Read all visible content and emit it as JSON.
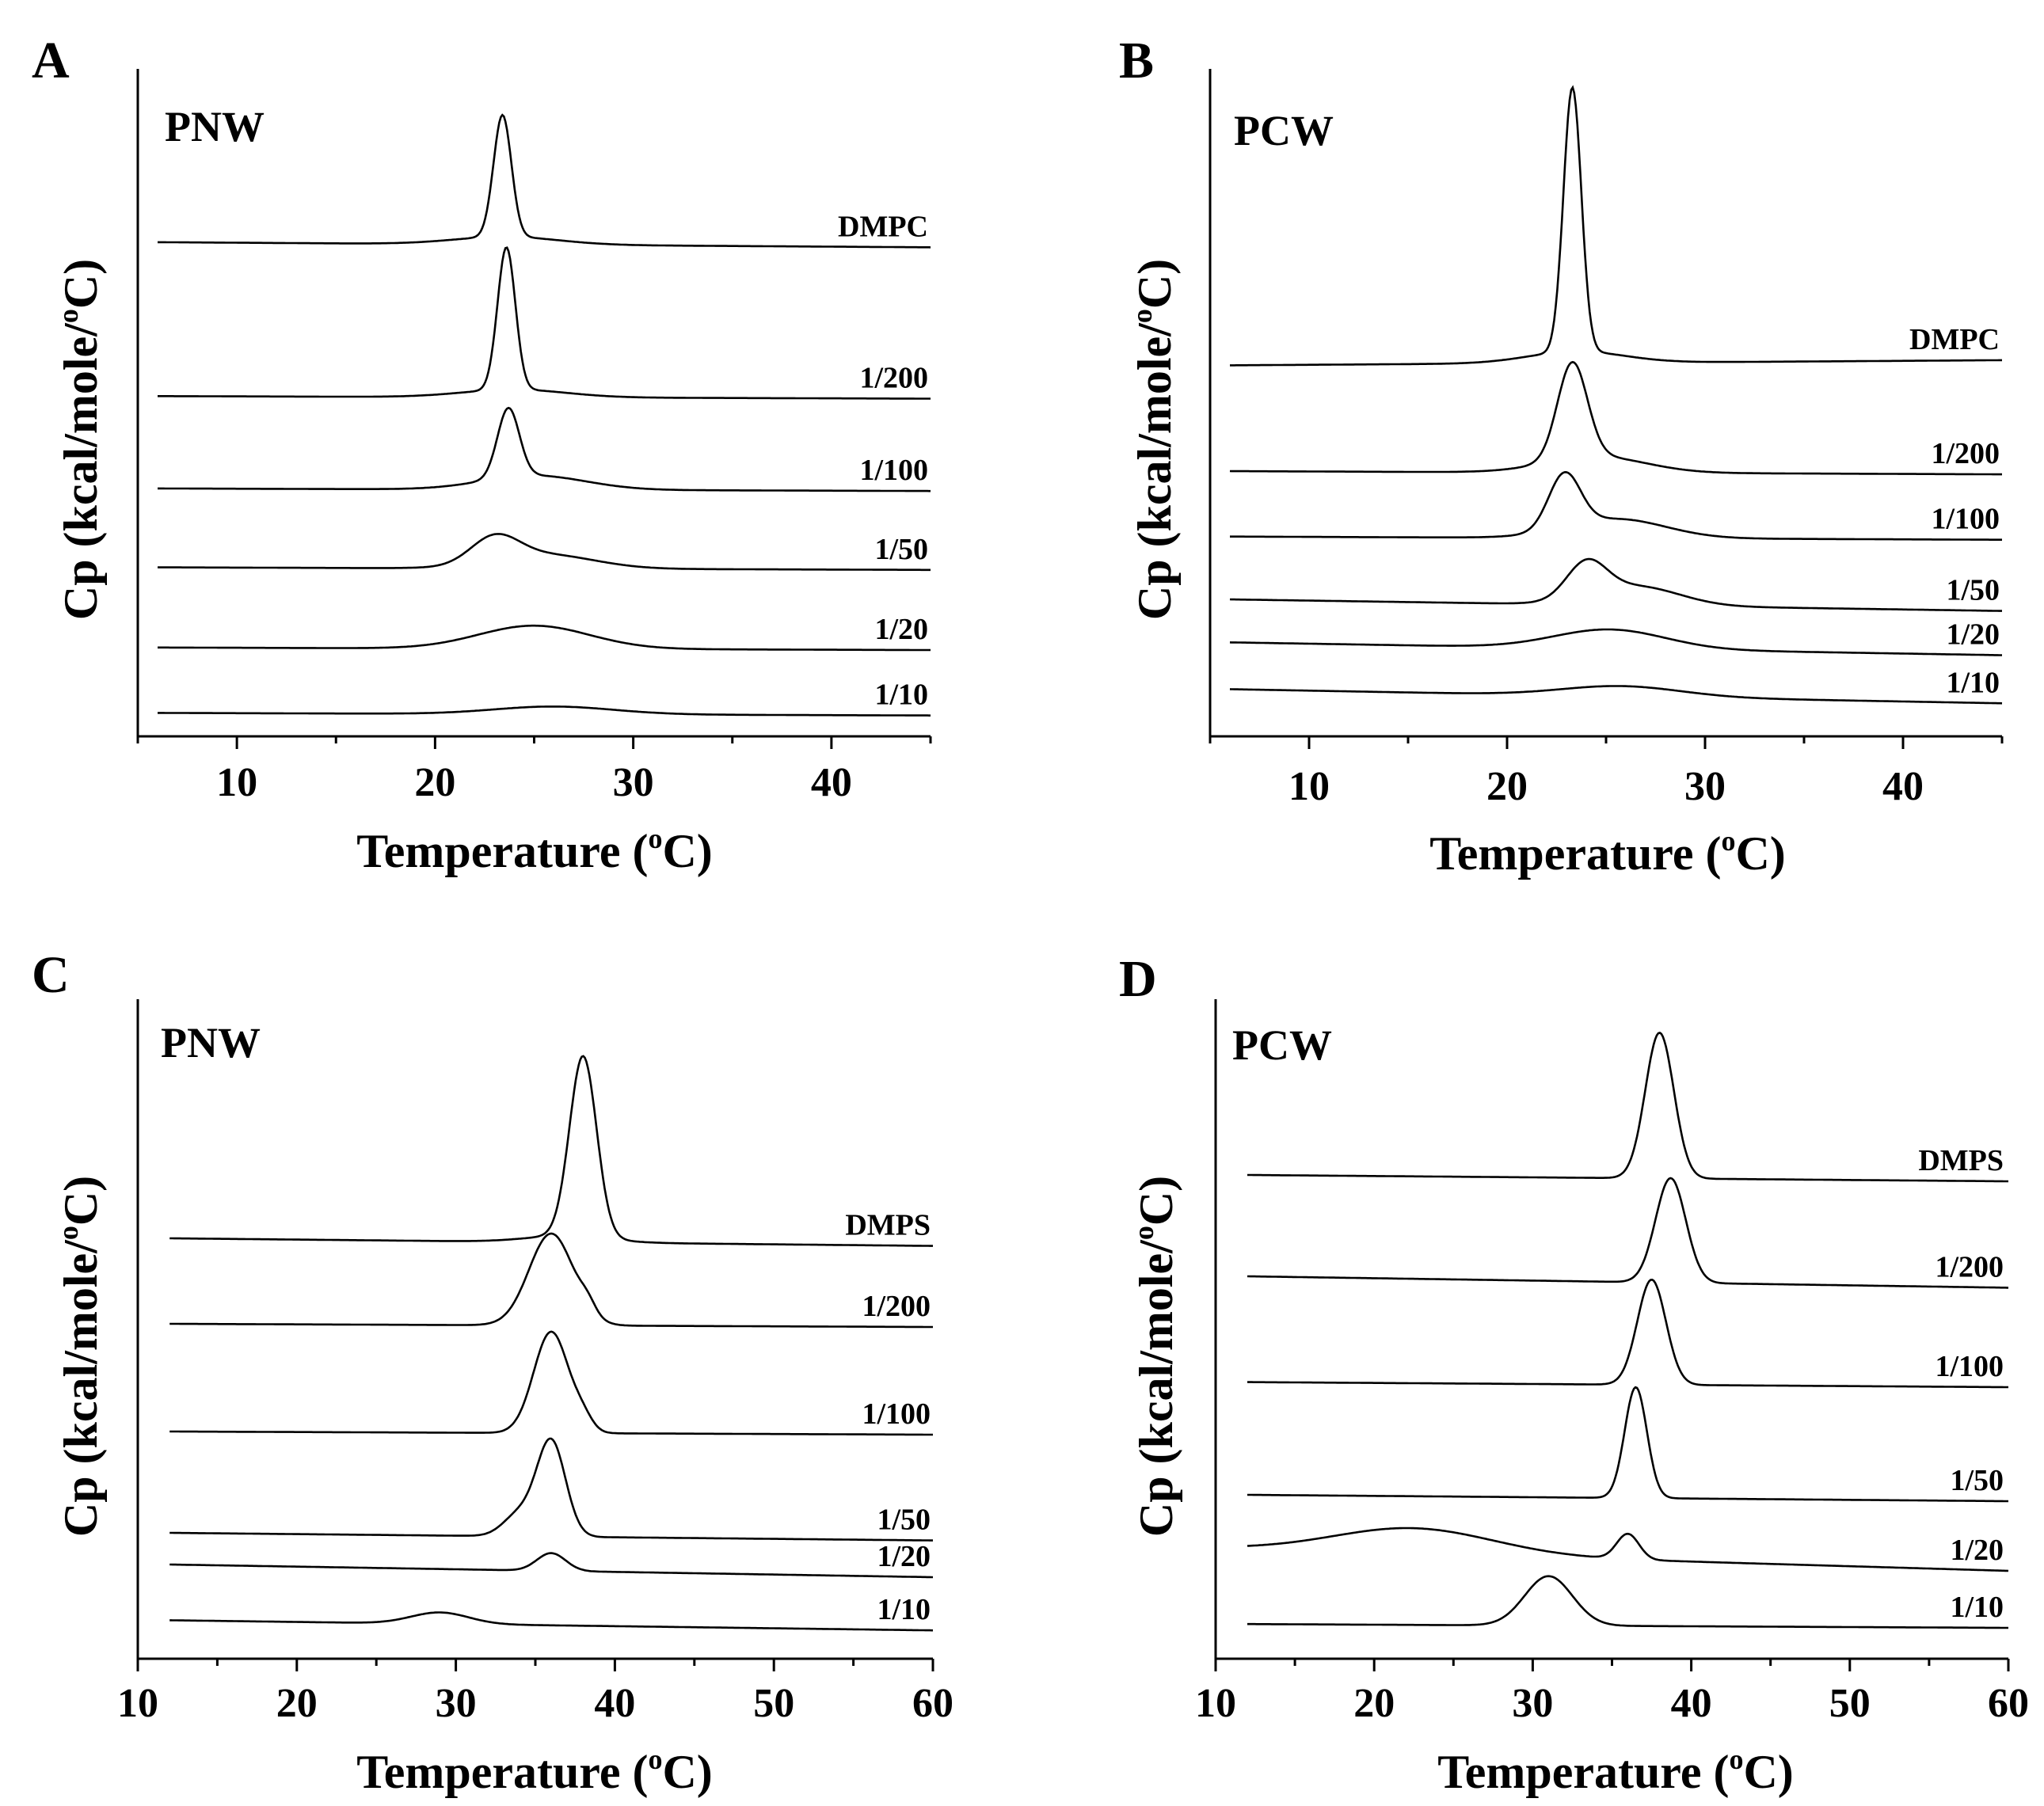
{
  "figure_title": "",
  "chart_data": [
    {
      "panel": "A",
      "type": "line",
      "sample": "PNW",
      "xlabel": "Temperature (oC)",
      "xlabel_main": "Temperature (",
      "xlabel_sup": "o",
      "xlabel_end": "C)",
      "ylabel": "Cp (kcal/mole/oC)",
      "ylabel_main": "Cp (kcal/mole/",
      "ylabel_sup": "o",
      "ylabel_end": "C)",
      "xlim": [
        5,
        45
      ],
      "xticks": [
        10,
        20,
        30,
        40
      ],
      "x_start": 6,
      "series": [
        {
          "name": "DMPC",
          "baseline": 0.752,
          "slope": -0.008,
          "components": [
            {
              "center": 23.4,
              "height": 0.19,
              "width": 0.45
            },
            {
              "center": 23.6,
              "height": 0.012,
              "width": 2.6
            }
          ]
        },
        {
          "name": "1/200",
          "baseline": 0.512,
          "slope": -0.004,
          "components": [
            {
              "center": 23.6,
              "height": 0.222,
              "width": 0.45
            },
            {
              "center": 24.0,
              "height": 0.012,
              "width": 2.6
            }
          ]
        },
        {
          "name": "1/100",
          "baseline": 0.368,
          "slope": -0.004,
          "components": [
            {
              "center": 23.7,
              "height": 0.108,
              "width": 0.55
            },
            {
              "center": 25.0,
              "height": 0.022,
              "width": 2.6
            }
          ]
        },
        {
          "name": "1/50",
          "baseline": 0.245,
          "slope": -0.004,
          "components": [
            {
              "center": 23.0,
              "height": 0.04,
              "width": 1.2
            },
            {
              "center": 25.5,
              "height": 0.022,
              "width": 2.5
            }
          ]
        },
        {
          "name": "1/20",
          "baseline": 0.12,
          "slope": -0.004,
          "components": [
            {
              "center": 25.0,
              "height": 0.036,
              "width": 2.8
            }
          ]
        },
        {
          "name": "1/10",
          "baseline": 0.018,
          "slope": -0.004,
          "components": [
            {
              "center": 26.0,
              "height": 0.012,
              "width": 3.0
            }
          ]
        }
      ]
    },
    {
      "panel": "B",
      "type": "line",
      "sample": "PCW",
      "xlabel": "Temperature (oC)",
      "xlabel_main": "Temperature (",
      "xlabel_sup": "o",
      "xlabel_end": "C)",
      "ylabel": "Cp (kcal/mole/oC)",
      "ylabel_main": "Cp (kcal/mole/",
      "ylabel_sup": "o",
      "ylabel_end": "C)",
      "xlim": [
        5,
        45
      ],
      "xticks": [
        10,
        20,
        30,
        40
      ],
      "x_start": 6,
      "series": [
        {
          "name": "DMPC",
          "baseline": 0.56,
          "slope": 0.008,
          "components": [
            {
              "center": 23.3,
              "height": 0.412,
              "width": 0.45
            },
            {
              "center": 23.5,
              "height": 0.018,
              "width": 2.4
            }
          ]
        },
        {
          "name": "1/200",
          "baseline": 0.395,
          "slope": -0.005,
          "components": [
            {
              "center": 23.3,
              "height": 0.15,
              "width": 0.75
            },
            {
              "center": 24.5,
              "height": 0.025,
              "width": 2.5
            }
          ]
        },
        {
          "name": "1/100",
          "baseline": 0.293,
          "slope": -0.005,
          "components": [
            {
              "center": 22.9,
              "height": 0.085,
              "width": 0.8
            },
            {
              "center": 25.5,
              "height": 0.03,
              "width": 2.5
            }
          ]
        },
        {
          "name": "1/50",
          "baseline": 0.195,
          "slope": -0.018,
          "components": [
            {
              "center": 24.0,
              "height": 0.055,
              "width": 1.0
            },
            {
              "center": 26.5,
              "height": 0.03,
              "width": 2.2
            }
          ]
        },
        {
          "name": "1/20",
          "baseline": 0.128,
          "slope": -0.02,
          "components": [
            {
              "center": 25.2,
              "height": 0.03,
              "width": 2.8
            }
          ]
        },
        {
          "name": "1/10",
          "baseline": 0.055,
          "slope": -0.022,
          "components": [
            {
              "center": 25.8,
              "height": 0.016,
              "width": 3.0
            }
          ]
        }
      ]
    },
    {
      "panel": "C",
      "type": "line",
      "sample": "PNW",
      "xlabel": "Temperature (oC)",
      "xlabel_main": "Temperature (",
      "xlabel_sup": "o",
      "xlabel_end": "C)",
      "ylabel": "Cp (kcal/mole/oC)",
      "ylabel_main": "Cp (kcal/mole/",
      "ylabel_sup": "o",
      "ylabel_end": "C)",
      "xlim": [
        10,
        60
      ],
      "xticks": [
        10,
        20,
        30,
        40,
        50,
        60
      ],
      "x_start": 12,
      "series": [
        {
          "name": "DMPS",
          "baseline": 0.645,
          "slope": -0.012,
          "components": [
            {
              "center": 38.0,
              "height": 0.285,
              "width": 0.85
            },
            {
              "center": 37.0,
              "height": 0.01,
              "width": 2.5
            }
          ]
        },
        {
          "name": "1/200",
          "baseline": 0.51,
          "slope": -0.005,
          "components": [
            {
              "center": 36.0,
              "height": 0.145,
              "width": 1.4
            },
            {
              "center": 38.3,
              "height": 0.016,
              "width": 0.5
            }
          ]
        },
        {
          "name": "1/100",
          "baseline": 0.34,
          "slope": -0.005,
          "components": [
            {
              "center": 36.0,
              "height": 0.16,
              "width": 1.1
            },
            {
              "center": 38.0,
              "height": 0.018,
              "width": 0.6
            }
          ]
        },
        {
          "name": "1/50",
          "baseline": 0.18,
          "slope": -0.012,
          "components": [
            {
              "center": 36.0,
              "height": 0.15,
              "width": 0.9
            },
            {
              "center": 34.0,
              "height": 0.035,
              "width": 1.0
            }
          ]
        },
        {
          "name": "1/20",
          "baseline": 0.13,
          "slope": -0.02,
          "components": [
            {
              "center": 36.0,
              "height": 0.028,
              "width": 0.9
            }
          ]
        },
        {
          "name": "1/10",
          "baseline": 0.042,
          "slope": -0.016,
          "components": [
            {
              "center": 29.0,
              "height": 0.018,
              "width": 1.8
            }
          ]
        }
      ]
    },
    {
      "panel": "D",
      "type": "line",
      "sample": "PCW",
      "xlabel": "Temperature (oC)",
      "xlabel_main": "Temperature (",
      "xlabel_sup": "o",
      "xlabel_end": "C)",
      "ylabel": "Cp (kcal/mole/oC)",
      "ylabel_main": "Cp (kcal/mole/",
      "ylabel_sup": "o",
      "ylabel_end": "C)",
      "xlim": [
        10,
        60
      ],
      "xticks": [
        10,
        20,
        30,
        40,
        50,
        60
      ],
      "x_start": 12,
      "series": [
        {
          "name": "DMPS",
          "baseline": 0.745,
          "slope": -0.01,
          "components": [
            {
              "center": 38.0,
              "height": 0.23,
              "width": 0.9
            }
          ]
        },
        {
          "name": "1/200",
          "baseline": 0.585,
          "slope": -0.018,
          "components": [
            {
              "center": 38.7,
              "height": 0.165,
              "width": 0.95
            }
          ]
        },
        {
          "name": "1/100",
          "baseline": 0.418,
          "slope": -0.008,
          "components": [
            {
              "center": 37.5,
              "height": 0.166,
              "width": 0.9
            }
          ]
        },
        {
          "name": "1/50",
          "baseline": 0.24,
          "slope": -0.01,
          "components": [
            {
              "center": 36.5,
              "height": 0.175,
              "width": 0.7
            }
          ]
        },
        {
          "name": "1/20",
          "baseline": 0.155,
          "slope": -0.035,
          "components": [
            {
              "center": 22.5,
              "height": 0.04,
              "width": 5.0
            },
            {
              "center": 36.0,
              "height": 0.04,
              "width": 0.7
            }
          ]
        },
        {
          "name": "1/10",
          "baseline": 0.036,
          "slope": -0.006,
          "components": [
            {
              "center": 31.0,
              "height": 0.078,
              "width": 1.5
            }
          ]
        }
      ]
    }
  ]
}
